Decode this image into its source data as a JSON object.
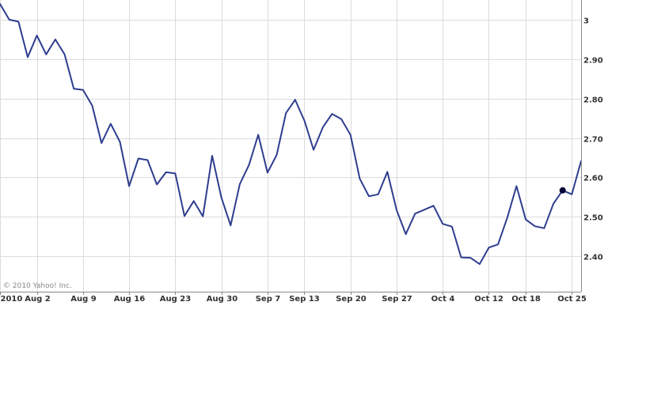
{
  "copyright": "© 2010 Yahoo! Inc.",
  "colors": {
    "line": "#2e3d8f",
    "marker": "#000033",
    "grid": "#dcdcdc"
  },
  "chart_data": {
    "type": "line",
    "title": "",
    "xlabel": "",
    "ylabel": "",
    "ylim": [
      2.31,
      3.05
    ],
    "grid": true,
    "y_ticks": [
      {
        "value": 3.0,
        "label": "3"
      },
      {
        "value": 2.9,
        "label": "2.90"
      },
      {
        "value": 2.8,
        "label": "2.80"
      },
      {
        "value": 2.7,
        "label": "2.70"
      },
      {
        "value": 2.6,
        "label": "2.60"
      },
      {
        "value": 2.5,
        "label": "2.50"
      },
      {
        "value": 2.4,
        "label": "2.40"
      }
    ],
    "x_ticks": [
      {
        "index": 0,
        "label": "2010"
      },
      {
        "index": 4,
        "label": "Aug 2"
      },
      {
        "index": 9,
        "label": "Aug 9"
      },
      {
        "index": 14,
        "label": "Aug 16"
      },
      {
        "index": 19,
        "label": "Aug 23"
      },
      {
        "index": 24,
        "label": "Aug 30"
      },
      {
        "index": 29,
        "label": "Sep 7"
      },
      {
        "index": 33,
        "label": "Sep 13"
      },
      {
        "index": 38,
        "label": "Sep 20"
      },
      {
        "index": 43,
        "label": "Sep 27"
      },
      {
        "index": 48,
        "label": "Oct 4"
      },
      {
        "index": 53,
        "label": "Oct 12"
      },
      {
        "index": 57,
        "label": "Oct 18"
      },
      {
        "index": 62,
        "label": "Oct 25"
      }
    ],
    "series": [
      {
        "values": [
          3.04,
          3.0,
          2.995,
          2.905,
          2.96,
          2.912,
          2.95,
          2.912,
          2.825,
          2.822,
          2.782,
          2.687,
          2.736,
          2.69,
          2.578,
          2.648,
          2.644,
          2.582,
          2.613,
          2.61,
          2.502,
          2.54,
          2.501,
          2.655,
          2.549,
          2.478,
          2.583,
          2.632,
          2.708,
          2.612,
          2.657,
          2.763,
          2.797,
          2.744,
          2.67,
          2.727,
          2.761,
          2.748,
          2.708,
          2.597,
          2.552,
          2.557,
          2.614,
          2.517,
          2.456,
          2.508,
          2.518,
          2.528,
          2.482,
          2.475,
          2.397,
          2.396,
          2.38,
          2.422,
          2.43,
          2.498,
          2.578,
          2.493,
          2.476,
          2.471,
          2.533,
          2.567,
          2.557,
          2.641
        ]
      }
    ],
    "marker": {
      "index": 61,
      "value": 2.567
    }
  }
}
